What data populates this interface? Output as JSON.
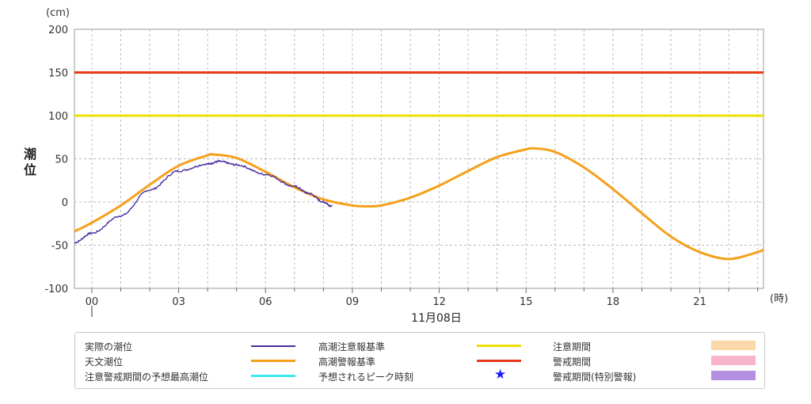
{
  "chart_data": {
    "type": "line",
    "unit_label": "(cm)",
    "ylabel": "潮位",
    "xlabel_unit": "(時)",
    "date_label": "11月08日",
    "ylim": [
      -100,
      200
    ],
    "xlim": [
      -0.6,
      23.2
    ],
    "yticks": [
      -100,
      -50,
      0,
      50,
      100,
      150,
      200
    ],
    "xticks": [
      "00",
      "03",
      "06",
      "09",
      "12",
      "15",
      "18",
      "21"
    ],
    "grid": true,
    "series": [
      {
        "name": "天文潮位",
        "color": "#f5a01a",
        "x": [
          -0.6,
          0,
          1,
          2,
          3,
          4,
          4.2,
          5,
          6,
          7,
          8,
          9,
          9.5,
          10,
          11,
          12,
          13,
          14,
          15,
          15.3,
          16,
          17,
          18,
          19,
          20,
          21,
          22,
          23,
          23.2
        ],
        "y": [
          -34,
          -24,
          -4,
          20,
          42,
          54,
          55,
          51,
          35,
          17,
          3,
          -4,
          -5,
          -4,
          5,
          19,
          36,
          52,
          61,
          62,
          58,
          40,
          15,
          -13,
          -40,
          -58,
          -66,
          -58,
          -55
        ]
      },
      {
        "name": "実際の潮位",
        "color": "#4b2f9e",
        "x": [
          -0.6,
          0,
          1,
          2,
          3,
          4,
          4.4,
          5,
          6,
          7,
          7.5,
          8,
          8.3
        ],
        "y": [
          -47,
          -36,
          -16,
          14,
          36,
          44,
          47,
          43,
          32,
          18,
          10,
          0,
          -5
        ]
      },
      {
        "name": "高潮注意報基準",
        "color": "#f0e000",
        "x": [
          -0.6,
          23.2
        ],
        "y": [
          100,
          100
        ]
      },
      {
        "name": "高潮警報基準",
        "color": "#e8381a",
        "x": [
          -0.6,
          23.2
        ],
        "y": [
          150,
          150
        ]
      }
    ]
  },
  "legend": {
    "actual": "実際の潮位",
    "astronomical": "天文潮位",
    "forecast_max": "注意警戒期間の予想最高潮位",
    "advisory_level": "高潮注意報基準",
    "warning_level": "高潮警報基準",
    "peak_time": "予想されるピーク時刻",
    "advisory_period": "注意期間",
    "warning_period": "警戒期間",
    "special_warning_period": "警戒期間(特別警報)",
    "colors": {
      "actual": "#4b2f9e",
      "astronomical": "#f5a01a",
      "forecast_max": "#3de8f0",
      "advisory_level": "#f0e000",
      "warning_level": "#e8381a",
      "peak_star": "#1a1aff",
      "advisory_period": "#fad8a8",
      "warning_period": "#f8b4c8",
      "special_warning_period": "#b48ee0"
    },
    "peak_icon": "star-icon"
  }
}
